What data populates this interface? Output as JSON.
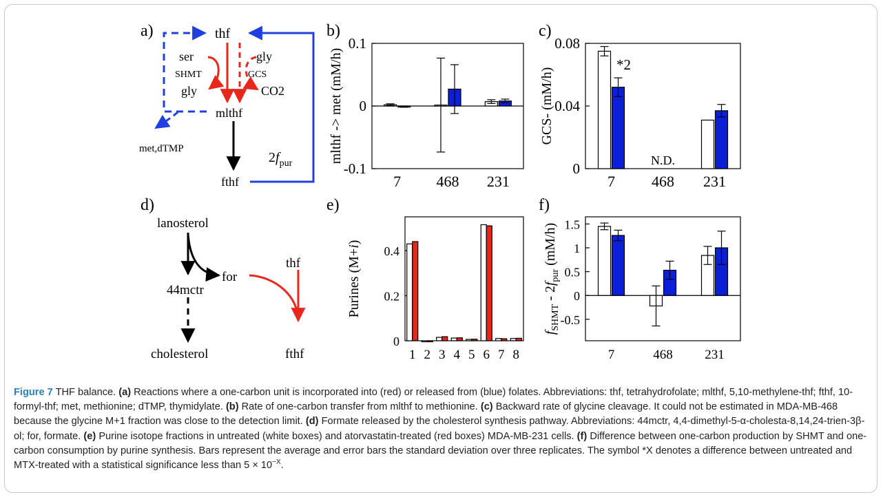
{
  "colors": {
    "blue_bar": "#0a1fd6",
    "red_bar": "#e8261b",
    "pathway_red": "#e8261b",
    "pathway_blue": "#1f3fe0",
    "caption_label": "#2c7fb8"
  },
  "panel_labels": [
    "a)",
    "b)",
    "c)",
    "d)",
    "e)",
    "f)"
  ],
  "pathway_a": {
    "nodes": {
      "thf": "thf",
      "ser": "ser",
      "gly_top": "gly",
      "gly_left": "gly",
      "co2": "CO2",
      "mlthf": "mlthf",
      "fthf": "fthf",
      "met_dtmp": "met,dTMP",
      "shmt": "SHMT",
      "gcs": "GCS"
    },
    "pur_label": {
      "coef": "2",
      "var": "f",
      "sub": "pur"
    }
  },
  "pathway_d": {
    "nodes": {
      "lanosterol": "lanosterol",
      "mctr": "44mctr",
      "for": "for",
      "thf": "thf",
      "cholesterol": "cholesterol",
      "fthf": "fthf"
    }
  },
  "chart_data": [
    {
      "panel": "b",
      "type": "bar",
      "ylabel": "mlthf -> met (mM/h)",
      "ylim": [
        -0.1,
        0.1
      ],
      "yticks": [
        "0.1",
        "0",
        "-0.1"
      ],
      "ytick_values": [
        0.1,
        0,
        -0.1
      ],
      "categories": [
        "7",
        "468",
        "231"
      ],
      "series": [
        {
          "values": [
            0.002,
            0.0015,
            0.007
          ],
          "errors": [
            0.0015,
            0.075,
            0.003
          ],
          "fill": "#ffffff"
        },
        {
          "values": [
            -0.001,
            0.027,
            0.008
          ],
          "errors": [
            0.001,
            0.039,
            0.003
          ],
          "fill": "#0a1fd6"
        }
      ]
    },
    {
      "panel": "c",
      "type": "bar",
      "ylabel": "GCS- (mM/h)",
      "ylim": [
        0,
        0.08
      ],
      "yticks": [
        "0.08",
        "0.04",
        "0"
      ],
      "ytick_values": [
        0.08,
        0.04,
        0
      ],
      "categories": [
        "7",
        "468",
        "231"
      ],
      "series": [
        {
          "values": [
            0.075,
            null,
            0.031
          ],
          "errors": [
            0.003,
            null,
            0
          ],
          "fill": "#ffffff"
        },
        {
          "values": [
            0.052,
            null,
            0.037
          ],
          "errors": [
            0.006,
            null,
            0.004
          ],
          "fill": "#0a1fd6"
        }
      ],
      "annotations": {
        "significance": "*2",
        "not_determined": "N.D."
      }
    },
    {
      "panel": "e",
      "type": "bar",
      "ylabel": "Purines (M+i)",
      "ylabel_parts": {
        "pre": "Purines (M+",
        "italic": "i",
        "post": ")"
      },
      "ylim": [
        0,
        0.55
      ],
      "yticks": [
        "0.4",
        "0.2",
        "0"
      ],
      "ytick_values": [
        0.4,
        0.2,
        0
      ],
      "categories": [
        "1",
        "2",
        "3",
        "4",
        "5",
        "6",
        "7",
        "8"
      ],
      "series": [
        {
          "values": [
            0.43,
            0,
            0.015,
            0.012,
            0.006,
            0.515,
            0.01,
            0.01
          ],
          "fill": "#ffffff"
        },
        {
          "values": [
            0.44,
            0,
            0.018,
            0.013,
            0.007,
            0.51,
            0.009,
            0.011
          ],
          "fill": "#e8261b"
        }
      ]
    },
    {
      "panel": "f",
      "type": "bar",
      "ylabel": "fSHMT - 2fpur (mM/h)",
      "ylabel_parts": {
        "f1": "f",
        "sub1": "SHMT",
        "mid": " - 2",
        "f2": "f",
        "sub2": "pur",
        "post": " (mM/h)"
      },
      "ylim": [
        -0.95,
        1.65
      ],
      "yticks": [
        "1.5",
        "1",
        "0.5",
        "0",
        "-0.5"
      ],
      "ytick_values": [
        1.5,
        1,
        0.5,
        0,
        -0.5
      ],
      "categories": [
        "7",
        "468",
        "231"
      ],
      "series": [
        {
          "values": [
            1.45,
            -0.22,
            0.84
          ],
          "errors": [
            0.07,
            0.42,
            0.19
          ],
          "fill": "#ffffff"
        },
        {
          "values": [
            1.26,
            0.53,
            1.0
          ],
          "errors": [
            0.11,
            0.19,
            0.35
          ],
          "fill": "#0a1fd6"
        }
      ]
    }
  ],
  "caption": {
    "figure_label": "Figure 7",
    "title": "THF balance.",
    "parts": [
      {
        "label": "(a)",
        "text": "Reactions where a one-carbon unit is incorporated into (red) or released from (blue) folates. Abbreviations: thf, tetrahydrofolate; mlthf, 5,10-methylene-thf; fthf, 10-formyl-thf; met, methionine; dTMP, thymidylate."
      },
      {
        "label": "(b)",
        "text": "Rate of one-carbon transfer from mlthf to methionine."
      },
      {
        "label": "(c)",
        "text": "Backward rate of glycine cleavage. It could not be estimated in MDA-MB-468 because the glycine M+1 fraction was close to the detection limit."
      },
      {
        "label": "(d)",
        "text": "Formate released by the cholesterol synthesis pathway. Abbreviations: 44mctr, 4,4-dimethyl-5-α-cholesta-8,14,24-trien-3β-ol; for, formate."
      },
      {
        "label": "(e)",
        "text": "Purine isotope fractions in untreated (white boxes) and atorvastatin-treated (red boxes) MDA-MB-231 cells."
      },
      {
        "label": "(f)",
        "text": "Difference between one-carbon production by SHMT and one-carbon consumption by purine synthesis. Bars represent the average and error bars the standard deviation over three replicates."
      }
    ],
    "tail_pre": "The symbol *X denotes a difference between untreated and MTX-treated with a statistical significance less than 5 × 10",
    "tail_exp": "−X",
    "tail_post": "."
  }
}
